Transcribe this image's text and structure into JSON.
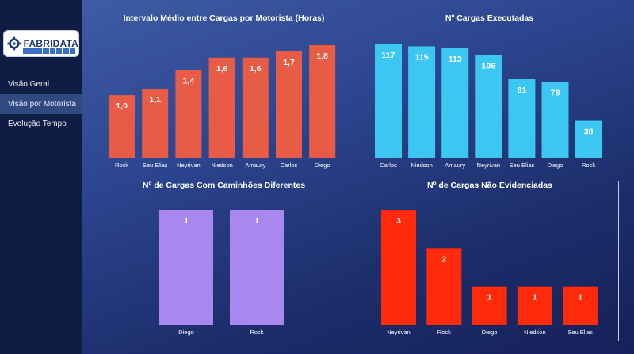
{
  "app": {
    "logo_text": "FABRIDATA"
  },
  "sidebar": {
    "items": [
      {
        "label": "Visão Geral",
        "active": false
      },
      {
        "label": "Visão por Motorista",
        "active": true
      },
      {
        "label": "Evolução Tempo",
        "active": false
      }
    ]
  },
  "colors": {
    "sidebar_bg": "#0f1d44",
    "chart1": "#e85c45",
    "chart2": "#3cc7f2",
    "chart3": "#aa86ef",
    "chart4": "#ff2a0a"
  },
  "chart_data": [
    {
      "type": "bar",
      "title": "Intervalo Médio entre Cargas por Motorista (Horas)",
      "categories": [
        "Rock",
        "Seu Elias",
        "Neyrivan",
        "Niedson",
        "Amaury",
        "Carlos",
        "Diego"
      ],
      "values": [
        1.0,
        1.1,
        1.4,
        1.6,
        1.6,
        1.7,
        1.8
      ],
      "labels": [
        "1,0",
        "1,1",
        "1,4",
        "1,6",
        "1,6",
        "1,7",
        "1,8"
      ],
      "ylim": [
        0,
        1.8
      ],
      "color": "#e85c45"
    },
    {
      "type": "bar",
      "title": "Nº Cargas Executadas",
      "categories": [
        "Carlos",
        "Niedson",
        "Amaury",
        "Neyrivan",
        "Seu Elias",
        "Diego",
        "Rock"
      ],
      "values": [
        117,
        115,
        113,
        106,
        81,
        78,
        38
      ],
      "labels": [
        "117",
        "115",
        "113",
        "106",
        "81",
        "78",
        "38"
      ],
      "ylim": [
        0,
        117
      ],
      "color": "#3cc7f2"
    },
    {
      "type": "bar",
      "title": "Nº de Cargas Com Caminhões Diferentes",
      "categories": [
        "Diego",
        "Rock"
      ],
      "values": [
        1,
        1
      ],
      "labels": [
        "1",
        "1"
      ],
      "ylim": [
        0,
        1
      ],
      "color": "#aa86ef"
    },
    {
      "type": "bar",
      "title": "Nº de Cargas Não Evidenciadas",
      "categories": [
        "Neyrivan",
        "Rock",
        "Diego",
        "Niedson",
        "Seu Elias"
      ],
      "values": [
        3,
        2,
        1,
        1,
        1
      ],
      "labels": [
        "3",
        "2",
        "1",
        "1",
        "1"
      ],
      "ylim": [
        0,
        3
      ],
      "color": "#ff2a0a"
    }
  ]
}
